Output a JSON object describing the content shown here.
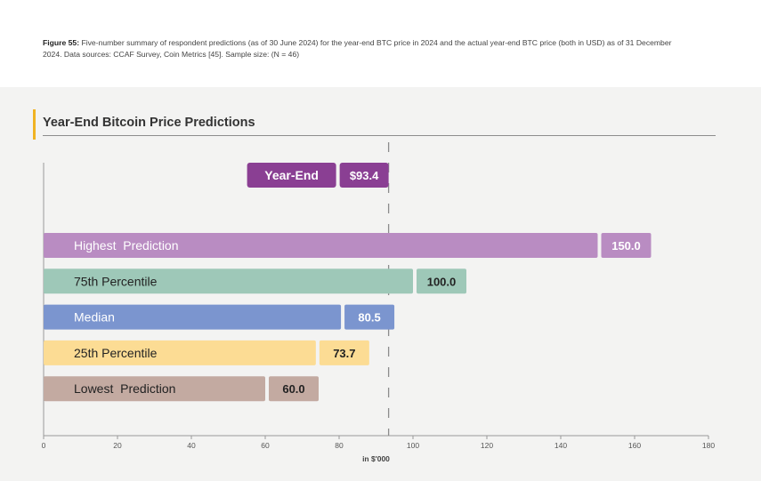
{
  "caption": {
    "label": "Figure 55:",
    "text": "Five-number summary of respondent predictions (as of 30 June 2024) for the year-end BTC price in 2024 and the actual year-end BTC price (both in USD) as of 31 December 2024. Data sources: CCAF Survey, Coin Metrics [45]. Sample size: (N = 46)"
  },
  "chart_data": {
    "type": "bar",
    "orientation": "horizontal",
    "title": "Year-End Bitcoin Price Predictions",
    "xlabel": "in $'000",
    "xlim": [
      0,
      180
    ],
    "xticks": [
      "0",
      "20",
      "40",
      "60",
      "80",
      "100",
      "120",
      "140",
      "160",
      "180"
    ],
    "reference": {
      "label": "Year-End",
      "value": 93.4,
      "value_label": "$93.4",
      "color": "#8a3f93"
    },
    "bars": [
      {
        "label": "Highest  Prediction",
        "value": 150.0,
        "value_label": "150.0",
        "color": "#b98cc2",
        "text_color": "#ffffff"
      },
      {
        "label": "75th Percentile",
        "value": 100.0,
        "value_label": "100.0",
        "color": "#9ec8b8",
        "text_color": "#222222"
      },
      {
        "label": "Median",
        "value": 80.5,
        "value_label": "80.5",
        "color": "#7b95cf",
        "text_color": "#ffffff"
      },
      {
        "label": "25th Percentile",
        "value": 73.7,
        "value_label": "73.7",
        "color": "#fcdc94",
        "text_color": "#222222"
      },
      {
        "label": "Lowest  Prediction",
        "value": 60.0,
        "value_label": "60.0",
        "color": "#c3aaa1",
        "text_color": "#222222"
      }
    ]
  }
}
